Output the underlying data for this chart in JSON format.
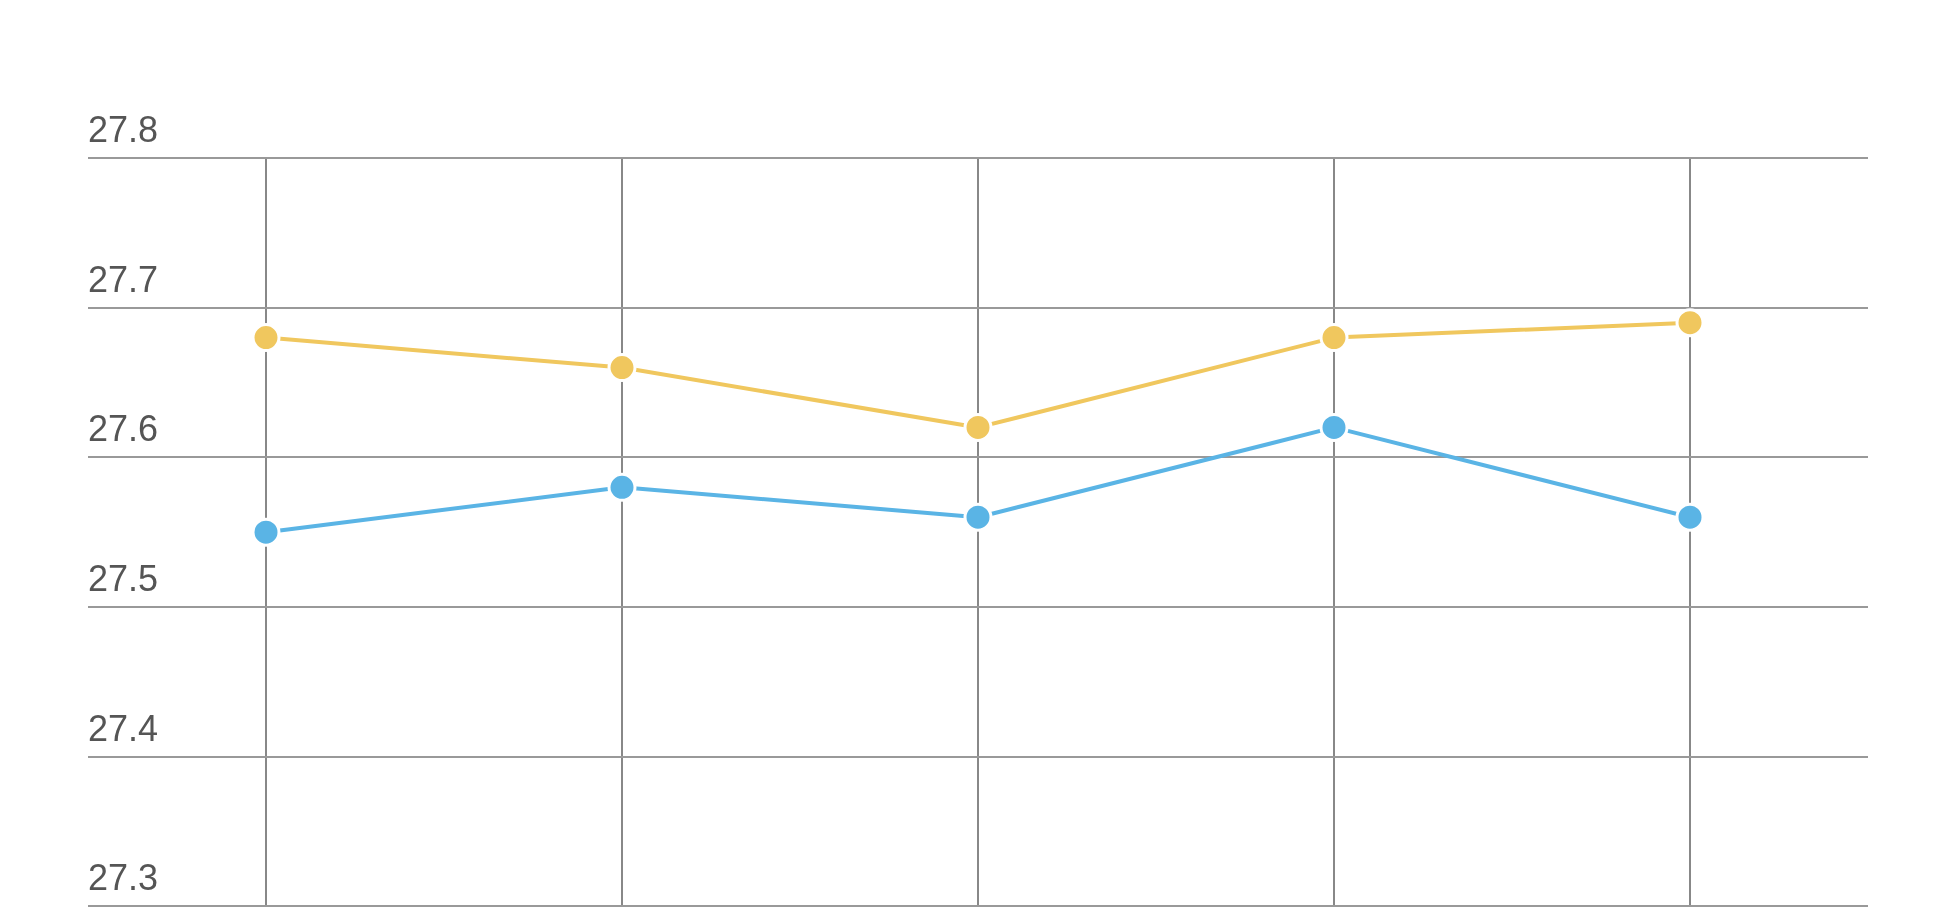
{
  "chart_data": {
    "type": "line",
    "categories": [
      null,
      null,
      null,
      null,
      null
    ],
    "series": [
      {
        "color": "#f0c75e",
        "values": [
          27.68,
          27.66,
          27.62,
          27.68,
          27.69
        ]
      },
      {
        "color": "#5ab4e5",
        "values": [
          27.55,
          27.58,
          27.56,
          27.62,
          27.56
        ]
      }
    ],
    "ylim": [
      27.3,
      27.8
    ],
    "yticks": [
      27.3,
      27.4,
      27.5,
      27.6,
      27.7,
      27.8
    ],
    "grid": true,
    "legend": false,
    "marker": "circle",
    "line_style": "solid"
  }
}
